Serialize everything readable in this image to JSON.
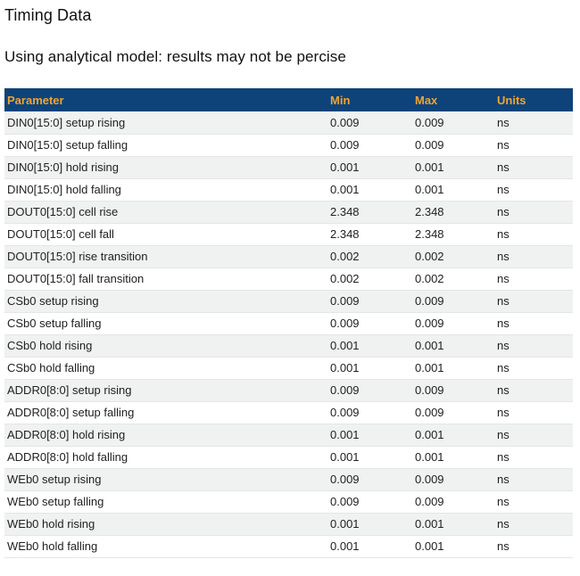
{
  "page": {
    "title": "Timing Data",
    "subtitle": "Using analytical model: results may not be percise"
  },
  "colors": {
    "header_bg": "#0e4379",
    "header_text": "#f0a433",
    "row_stripe": "#f0f1f1",
    "row_border": "#e4e6e6",
    "text": "#212121",
    "title_text": "#111111"
  },
  "table": {
    "columns": [
      {
        "key": "param",
        "label": "Parameter"
      },
      {
        "key": "min",
        "label": "Min"
      },
      {
        "key": "max",
        "label": "Max"
      },
      {
        "key": "units",
        "label": "Units"
      }
    ],
    "rows": [
      {
        "param": "DIN0[15:0] setup rising",
        "min": "0.009",
        "max": "0.009",
        "units": "ns"
      },
      {
        "param": "DIN0[15:0] setup falling",
        "min": "0.009",
        "max": "0.009",
        "units": "ns"
      },
      {
        "param": "DIN0[15:0] hold rising",
        "min": "0.001",
        "max": "0.001",
        "units": "ns"
      },
      {
        "param": "DIN0[15:0] hold falling",
        "min": "0.001",
        "max": "0.001",
        "units": "ns"
      },
      {
        "param": "DOUT0[15:0] cell rise",
        "min": "2.348",
        "max": "2.348",
        "units": "ns"
      },
      {
        "param": "DOUT0[15:0] cell fall",
        "min": "2.348",
        "max": "2.348",
        "units": "ns"
      },
      {
        "param": "DOUT0[15:0] rise transition",
        "min": "0.002",
        "max": "0.002",
        "units": "ns"
      },
      {
        "param": "DOUT0[15:0] fall transition",
        "min": "0.002",
        "max": "0.002",
        "units": "ns"
      },
      {
        "param": "CSb0 setup rising",
        "min": "0.009",
        "max": "0.009",
        "units": "ns"
      },
      {
        "param": "CSb0 setup falling",
        "min": "0.009",
        "max": "0.009",
        "units": "ns"
      },
      {
        "param": "CSb0 hold rising",
        "min": "0.001",
        "max": "0.001",
        "units": "ns"
      },
      {
        "param": "CSb0 hold falling",
        "min": "0.001",
        "max": "0.001",
        "units": "ns"
      },
      {
        "param": "ADDR0[8:0] setup rising",
        "min": "0.009",
        "max": "0.009",
        "units": "ns"
      },
      {
        "param": "ADDR0[8:0] setup falling",
        "min": "0.009",
        "max": "0.009",
        "units": "ns"
      },
      {
        "param": "ADDR0[8:0] hold rising",
        "min": "0.001",
        "max": "0.001",
        "units": "ns"
      },
      {
        "param": "ADDR0[8:0] hold falling",
        "min": "0.001",
        "max": "0.001",
        "units": "ns"
      },
      {
        "param": "WEb0 setup rising",
        "min": "0.009",
        "max": "0.009",
        "units": "ns"
      },
      {
        "param": "WEb0 setup falling",
        "min": "0.009",
        "max": "0.009",
        "units": "ns"
      },
      {
        "param": "WEb0 hold rising",
        "min": "0.001",
        "max": "0.001",
        "units": "ns"
      },
      {
        "param": "WEb0 hold falling",
        "min": "0.001",
        "max": "0.001",
        "units": "ns"
      }
    ]
  }
}
